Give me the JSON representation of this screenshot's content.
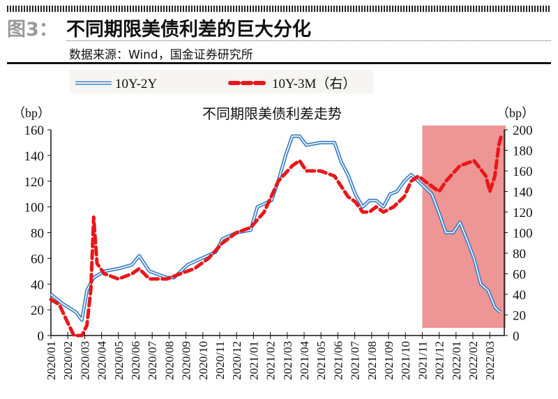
{
  "header": {
    "figure_label": "图3：",
    "title": "不同期限美债利差的巨大分化",
    "source": "数据来源：Wind，国金证券研究所"
  },
  "chart_data": {
    "type": "line",
    "title": "不同期限美债利差走势",
    "ylabel_left": "（bp）",
    "ylabel_right": "（bp）",
    "ylim_left": [
      0,
      160
    ],
    "ylim_right": [
      0,
      200
    ],
    "yticks_left": [
      "0",
      "20",
      "40",
      "60",
      "80",
      "100",
      "120",
      "140",
      "160"
    ],
    "yticks_right": [
      "0",
      "20",
      "40",
      "60",
      "80",
      "100",
      "120",
      "140",
      "160",
      "180",
      "200"
    ],
    "xticks": [
      "2020/01",
      "2020/02",
      "2020/03",
      "2020/04",
      "2020/05",
      "2020/06",
      "2020/07",
      "2020/08",
      "2020/09",
      "2020/10",
      "2020/11",
      "2020/12",
      "2021/01",
      "2021/02",
      "2021/03",
      "2021/04",
      "2021/05",
      "2021/06",
      "2021/07",
      "2021/08",
      "2021/09",
      "2021/10",
      "2021/11",
      "2021/12",
      "2022/01",
      "2022/02",
      "2022/03"
    ],
    "legend_position": "top",
    "highlight_region": {
      "from": "2021-11-01",
      "to": "2022-03-31",
      "color": "#ec8a8a"
    },
    "series": [
      {
        "name": "10Y-2Y",
        "axis": "left",
        "color": "#3a7fc4",
        "style": "double-line",
        "x": [
          "2020-01-01",
          "2020-01-21",
          "2020-02-16",
          "2020-02-26",
          "2020-03-05",
          "2020-03-17",
          "2020-04-06",
          "2020-05-01",
          "2020-05-25",
          "2020-06-08",
          "2020-06-26",
          "2020-07-27",
          "2020-08-10",
          "2020-09-04",
          "2020-09-29",
          "2020-10-24",
          "2020-11-06",
          "2020-12-01",
          "2020-12-26",
          "2021-01-08",
          "2021-02-03",
          "2021-02-15",
          "2021-02-28",
          "2021-03-10",
          "2021-03-23",
          "2021-04-05",
          "2021-04-30",
          "2021-05-25",
          "2021-06-07",
          "2021-06-19",
          "2021-07-02",
          "2021-07-15",
          "2021-07-27",
          "2021-08-09",
          "2021-08-22",
          "2021-09-04",
          "2021-09-16",
          "2021-09-29",
          "2021-10-11",
          "2021-10-24",
          "2021-11-06",
          "2021-11-18",
          "2021-12-01",
          "2021-12-13",
          "2021-12-26",
          "2022-01-08",
          "2022-01-20",
          "2022-02-03",
          "2022-02-15",
          "2022-02-28",
          "2022-03-10",
          "2022-03-20"
        ],
        "y": [
          32,
          25,
          18,
          12,
          35,
          45,
          50,
          52,
          55,
          62,
          50,
          45,
          45,
          55,
          60,
          65,
          75,
          80,
          82,
          100,
          105,
          120,
          140,
          155,
          155,
          148,
          150,
          150,
          135,
          125,
          110,
          100,
          105,
          105,
          100,
          110,
          112,
          120,
          125,
          120,
          115,
          110,
          95,
          80,
          80,
          88,
          75,
          60,
          40,
          35,
          22,
          18
        ]
      },
      {
        "name": "10Y-3M（右）",
        "axis": "right",
        "color": "#e8171b",
        "style": "dashed",
        "x": [
          "2020-01-01",
          "2020-01-16",
          "2020-02-03",
          "2020-02-12",
          "2020-02-26",
          "2020-03-05",
          "2020-03-12",
          "2020-03-17",
          "2020-03-23",
          "2020-04-06",
          "2020-05-01",
          "2020-05-25",
          "2020-06-08",
          "2020-06-26",
          "2020-07-27",
          "2020-08-21",
          "2020-09-16",
          "2020-10-11",
          "2020-11-06",
          "2020-12-01",
          "2020-12-26",
          "2021-01-20",
          "2021-02-15",
          "2021-03-10",
          "2021-03-23",
          "2021-04-05",
          "2021-04-30",
          "2021-05-25",
          "2021-06-07",
          "2021-06-19",
          "2021-07-02",
          "2021-07-15",
          "2021-07-27",
          "2021-08-09",
          "2021-08-22",
          "2021-09-10",
          "2021-09-29",
          "2021-10-11",
          "2021-10-24",
          "2021-11-06",
          "2021-11-18",
          "2021-12-01",
          "2021-12-13",
          "2022-01-08",
          "2022-02-03",
          "2022-02-24",
          "2022-03-01",
          "2022-03-10",
          "2022-03-17",
          "2022-03-22"
        ],
        "y": [
          35,
          30,
          10,
          0,
          0,
          10,
          45,
          115,
          70,
          60,
          55,
          60,
          65,
          55,
          55,
          60,
          65,
          75,
          90,
          100,
          105,
          120,
          150,
          165,
          170,
          160,
          160,
          155,
          145,
          135,
          130,
          120,
          120,
          125,
          120,
          125,
          135,
          150,
          155,
          150,
          145,
          140,
          150,
          165,
          170,
          155,
          140,
          155,
          185,
          195
        ]
      }
    ]
  }
}
